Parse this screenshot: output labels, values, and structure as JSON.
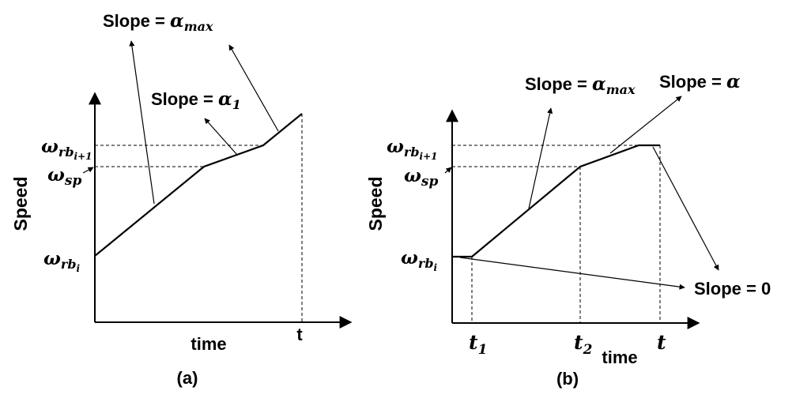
{
  "panel_a": {
    "caption": "(a)",
    "ylabel": "Speed",
    "xlabel": "time",
    "t_label": "t",
    "omega_rb_i": {
      "symbol": "ω",
      "sub": "rb",
      "subsub": "i"
    },
    "omega_sp": {
      "symbol": "ω",
      "sub": "sp"
    },
    "omega_rb_i1": {
      "symbol": "ω",
      "sub": "rb",
      "subsub": "i+1"
    },
    "slope_max": {
      "text": "Slope = ",
      "symbol": "α",
      "sub": "max"
    },
    "slope_1": {
      "text": "Slope = ",
      "symbol": "α",
      "sub": "1"
    }
  },
  "panel_b": {
    "caption": "(b)",
    "ylabel": "Speed",
    "xlabel": "time",
    "t1": {
      "symbol": "t",
      "sub": "1"
    },
    "t2": {
      "symbol": "t",
      "sub": "2"
    },
    "t": {
      "symbol": "t"
    },
    "omega_rb_i": {
      "symbol": "ω",
      "sub": "rb",
      "subsub": "i"
    },
    "omega_sp": {
      "symbol": "ω",
      "sub": "sp"
    },
    "omega_rb_i1": {
      "symbol": "ω",
      "sub": "rb",
      "subsub": "i+1"
    },
    "slope_max": {
      "text": "Slope = ",
      "symbol": "α",
      "sub": "max"
    },
    "slope_alpha": {
      "text": "Slope = ",
      "symbol": "α"
    },
    "slope_zero": "Slope = 0"
  }
}
